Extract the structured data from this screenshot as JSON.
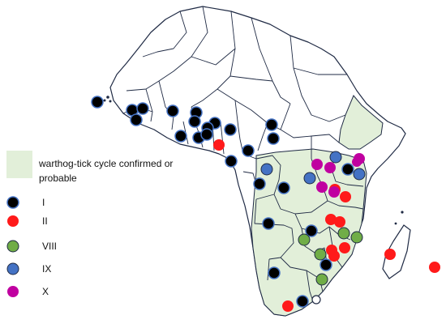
{
  "legend": {
    "zone_label": "warthog-tick cycle confirmed or probable",
    "genotypes": [
      {
        "label": "I",
        "color": "#000000"
      },
      {
        "label": "II",
        "color": "#ff1a1a"
      },
      {
        "label": "VIII",
        "color": "#70ad47"
      },
      {
        "label": "IX",
        "color": "#4472c4"
      },
      {
        "label": "X",
        "color": "#c000a0"
      }
    ]
  },
  "colors": {
    "land": "#ffffff",
    "zone": "#e2efd9",
    "border": "#1f2a44"
  }
}
